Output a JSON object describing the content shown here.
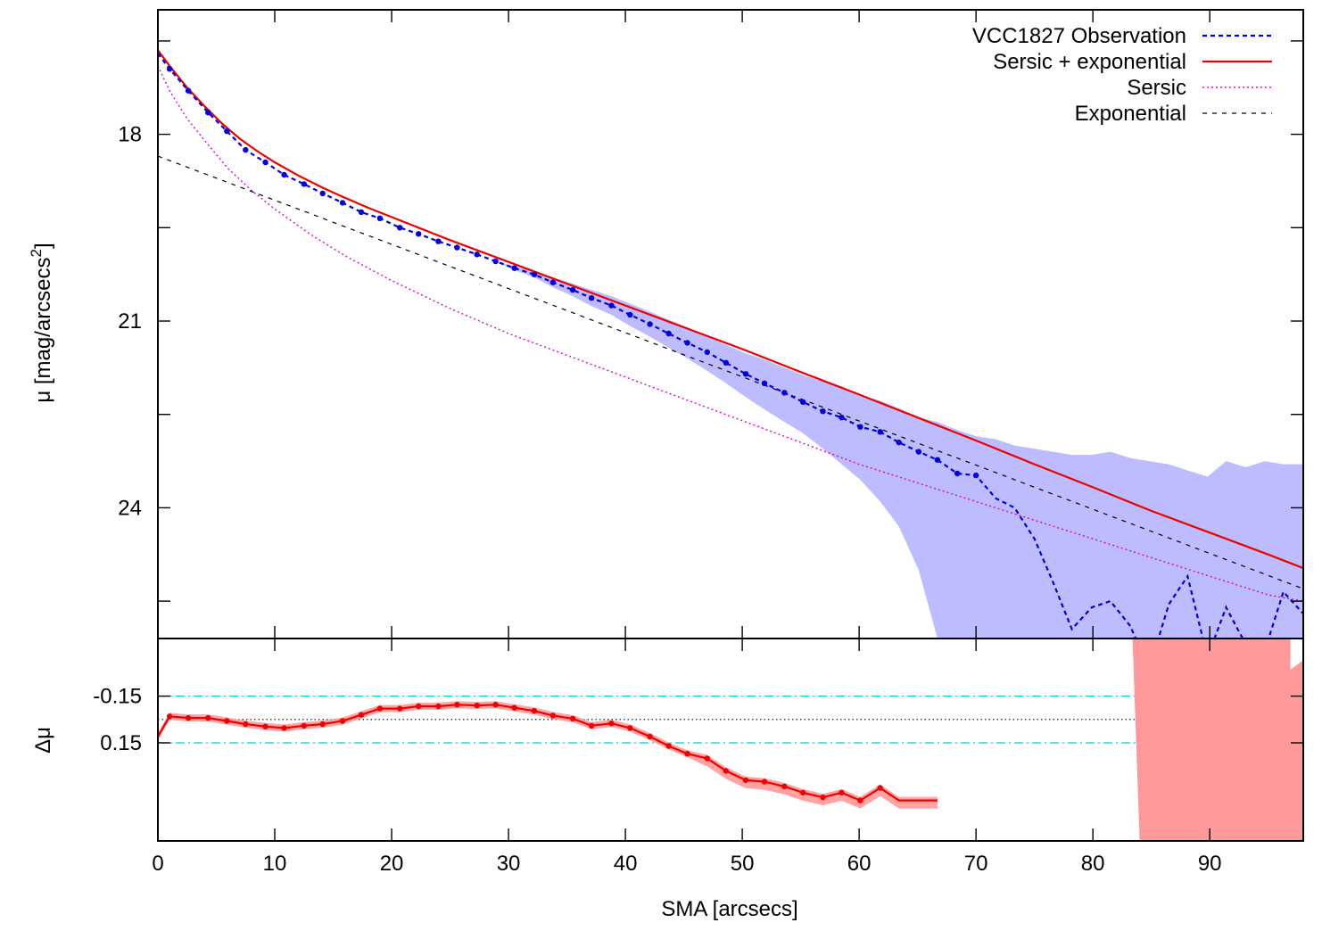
{
  "chart_data": [
    {
      "panel": "main",
      "type": "line",
      "xlabel": "SMA [arcsecs]",
      "ylabel": "μ [mag/arcsecs",
      "ylabel_sup": "2",
      "ylabel_close": "]",
      "xlim": [
        0,
        98
      ],
      "ylim": [
        26.1,
        16.0
      ],
      "y_inverted": true,
      "yticks": [
        18,
        21,
        24
      ],
      "ytick_labels": [
        "18",
        "21",
        "24"
      ],
      "legend_position": "top-right",
      "series": [
        {
          "name": "VCC1827 Observation",
          "style": "dashed",
          "color": "#0000dd",
          "markers": true,
          "x": [
            0,
            1.0,
            2.6,
            4.3,
            5.9,
            7.5,
            9.2,
            10.8,
            12.5,
            14.1,
            15.8,
            17.4,
            19.0,
            20.7,
            22.3,
            24.0,
            25.6,
            27.3,
            28.9,
            30.5,
            32.2,
            33.8,
            35.5,
            37.1,
            38.8,
            40.4,
            42.1,
            43.7,
            45.3,
            47.0,
            48.6,
            50.3,
            51.9,
            53.6,
            55.2,
            56.9,
            58.5,
            60.1,
            61.8,
            63.4,
            65.1,
            66.7,
            68.4,
            70.0,
            71.7,
            73.3,
            75.0,
            76.6,
            78.2,
            79.9,
            81.5,
            83.2,
            84.8,
            86.5,
            88.1,
            89.8,
            91.4,
            93.1,
            94.7,
            96.3,
            98.0
          ],
          "y": [
            16.7,
            16.95,
            17.3,
            17.65,
            17.95,
            18.25,
            18.45,
            18.65,
            18.8,
            18.95,
            19.1,
            19.25,
            19.35,
            19.5,
            19.6,
            19.72,
            19.82,
            19.93,
            20.04,
            20.15,
            20.25,
            20.38,
            20.5,
            20.63,
            20.75,
            20.9,
            21.05,
            21.2,
            21.35,
            21.5,
            21.67,
            21.85,
            22.0,
            22.15,
            22.3,
            22.45,
            22.55,
            22.7,
            22.78,
            22.95,
            23.1,
            23.23,
            23.45,
            23.48,
            23.85,
            24.0,
            24.5,
            25.2,
            25.95,
            25.6,
            25.5,
            25.9,
            26.6,
            25.55,
            25.1,
            26.4,
            25.6,
            26.2,
            26.3,
            25.35,
            25.7
          ],
          "shade_upper": [
            16.7,
            16.95,
            17.3,
            17.65,
            17.95,
            18.25,
            18.45,
            18.65,
            18.8,
            18.95,
            19.1,
            19.25,
            19.35,
            19.5,
            19.6,
            19.72,
            19.82,
            19.93,
            20.04,
            20.12,
            20.2,
            20.3,
            20.4,
            20.5,
            20.6,
            20.72,
            20.85,
            20.98,
            21.1,
            21.25,
            21.38,
            21.52,
            21.62,
            21.75,
            21.87,
            21.97,
            22.05,
            22.2,
            22.28,
            22.4,
            22.55,
            22.62,
            22.75,
            22.85,
            22.9,
            23.0,
            23.05,
            23.1,
            23.15,
            23.15,
            23.1,
            23.2,
            23.25,
            23.3,
            23.4,
            23.5,
            23.25,
            23.35,
            23.25,
            23.3,
            23.3
          ],
          "shade_lower": [
            16.7,
            16.95,
            17.3,
            17.65,
            17.95,
            18.25,
            18.45,
            18.65,
            18.8,
            18.95,
            19.1,
            19.25,
            19.35,
            19.5,
            19.6,
            19.72,
            19.82,
            19.93,
            20.04,
            20.18,
            20.3,
            20.46,
            20.6,
            20.76,
            20.9,
            21.08,
            21.25,
            21.43,
            21.6,
            21.8,
            22.0,
            22.22,
            22.42,
            22.62,
            22.8,
            23.05,
            23.3,
            23.55,
            23.9,
            24.3,
            25.0,
            26.1,
            26.5,
            26.5,
            26.5,
            26.5,
            26.5,
            26.5,
            26.5,
            26.5,
            26.5,
            26.5,
            26.5,
            26.5,
            26.5,
            26.5,
            26.5,
            26.5,
            26.5,
            26.5,
            26.5
          ],
          "marker_count": 44
        },
        {
          "name": "Sersic + exponential",
          "style": "solid",
          "color": "#ee0000",
          "x": [
            0,
            1,
            2.5,
            4,
            5.5,
            7,
            8.5,
            10,
            12,
            14,
            16,
            18,
            20,
            25,
            30,
            35,
            40,
            45,
            50,
            55,
            60,
            65,
            70,
            75,
            80,
            85,
            90,
            95,
            98
          ],
          "y": [
            16.65,
            16.9,
            17.25,
            17.55,
            17.83,
            18.07,
            18.27,
            18.45,
            18.66,
            18.85,
            19.02,
            19.18,
            19.33,
            19.7,
            20.05,
            20.4,
            20.75,
            21.1,
            21.45,
            21.82,
            22.18,
            22.55,
            22.92,
            23.3,
            23.67,
            24.05,
            24.4,
            24.75,
            24.97
          ]
        },
        {
          "name": "Sersic",
          "style": "dotted",
          "color": "#dd00dd",
          "x": [
            0,
            1,
            2.5,
            4,
            6,
            8,
            10,
            13,
            16,
            20,
            25,
            30,
            35,
            40,
            45,
            50,
            55,
            60,
            65,
            70,
            75,
            80,
            85,
            90,
            95,
            98
          ],
          "y": [
            16.9,
            17.3,
            17.75,
            18.1,
            18.55,
            18.9,
            19.2,
            19.6,
            19.95,
            20.35,
            20.8,
            21.2,
            21.55,
            21.9,
            22.25,
            22.6,
            22.95,
            23.3,
            23.6,
            23.9,
            24.2,
            24.5,
            24.8,
            25.1,
            25.4,
            25.5
          ]
        },
        {
          "name": "Exponential",
          "style": "dashed",
          "color": "#000000",
          "x": [
            0,
            98
          ],
          "y": [
            18.35,
            25.3
          ]
        }
      ]
    },
    {
      "panel": "residual",
      "type": "line",
      "ylabel": "Δμ",
      "xlim": [
        0,
        98
      ],
      "ylim": [
        0.78,
        -0.52
      ],
      "y_inverted": true,
      "yticks": [
        0.15,
        -0.15
      ],
      "ytick_labels": [
        "0.15",
        "-0.15"
      ],
      "reference_lines": [
        {
          "y": 0.15,
          "color": "#00cccc",
          "style": "dash-dot"
        },
        {
          "y": -0.15,
          "color": "#00cccc",
          "style": "dash-dot"
        },
        {
          "y": 0,
          "color": "#000000",
          "style": "dotted"
        }
      ],
      "xticks": [
        0,
        10,
        20,
        30,
        40,
        50,
        60,
        70,
        80,
        90
      ],
      "xtick_labels": [
        "0",
        "10",
        "20",
        "30",
        "40",
        "50",
        "60",
        "70",
        "80",
        "90"
      ],
      "series": [
        {
          "name": "",
          "color": "#ee0000",
          "shade_color": "#ff9999",
          "x": [
            0,
            1.0,
            2.6,
            4.3,
            5.9,
            7.5,
            9.2,
            10.8,
            12.5,
            14.1,
            15.8,
            17.4,
            19.0,
            20.7,
            22.3,
            24.0,
            25.6,
            27.3,
            28.9,
            30.5,
            32.2,
            33.8,
            35.5,
            37.1,
            38.8,
            40.4,
            42.1,
            43.7,
            45.3,
            47.0,
            48.6,
            50.3,
            51.9,
            53.6,
            55.2,
            56.9,
            58.5,
            60.1,
            61.8,
            63.4,
            65.1,
            66.7
          ],
          "y": [
            0.11,
            -0.02,
            -0.01,
            -0.01,
            0.01,
            0.03,
            0.045,
            0.055,
            0.04,
            0.03,
            0.01,
            -0.03,
            -0.07,
            -0.07,
            -0.085,
            -0.085,
            -0.095,
            -0.09,
            -0.095,
            -0.075,
            -0.055,
            -0.025,
            -0.005,
            0.04,
            0.025,
            0.055,
            0.11,
            0.17,
            0.22,
            0.25,
            0.33,
            0.39,
            0.4,
            0.43,
            0.47,
            0.5,
            0.47,
            0.52,
            0.44,
            0.52,
            0.52,
            0.52
          ],
          "right_shade_x": [
            84.0,
            98.0
          ],
          "marker_count": 39
        }
      ]
    }
  ]
}
